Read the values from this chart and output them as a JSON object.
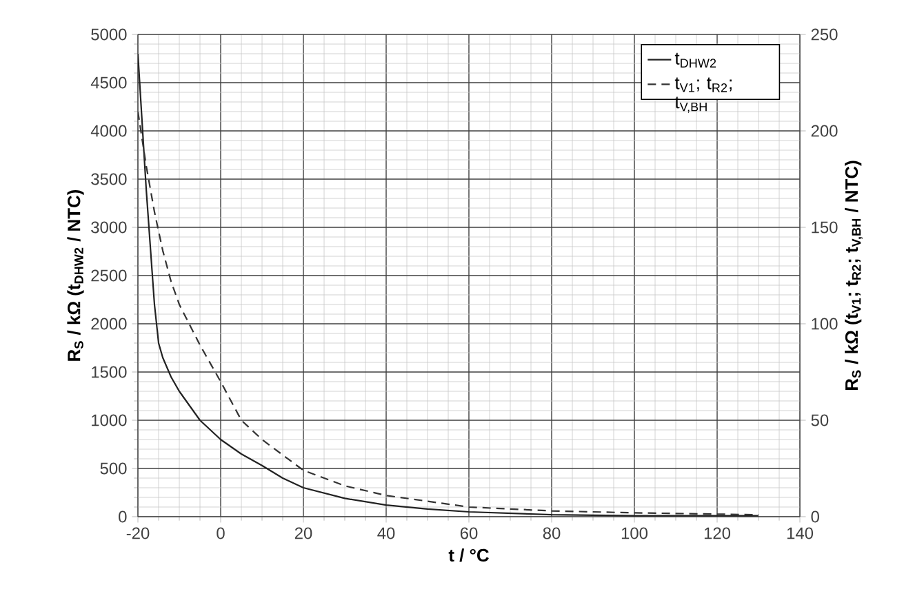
{
  "chart_data": {
    "type": "line",
    "xlabel": "t / °C",
    "ylabel": "R$_{S}$ / kΩ (t$_{DHW2}$ / NTC)",
    "y2label": "R$_{S}$ / kΩ (t$_{V1}$; t$_{R2}$; t$_{V,BH}$ / NTC)",
    "series": [
      {
        "name": "t$_{DHW2}$",
        "color": "#222222",
        "line_style": "solid",
        "x": [
          -20,
          -19,
          -18,
          -17,
          -16,
          -15,
          -14,
          -12,
          -10,
          -5,
          0,
          5,
          10,
          15,
          20,
          30,
          40,
          50,
          60,
          80,
          100,
          120,
          130
        ],
        "values": [
          4800,
          4100,
          3400,
          2800,
          2200,
          1800,
          1650,
          1450,
          1300,
          1000,
          800,
          650,
          530,
          400,
          300,
          190,
          120,
          80,
          50,
          20,
          10,
          10,
          10
        ]
      },
      {
        "name": "t$_{V1}$; t$_{R2}$; t$_{V,BH}$",
        "color": "#333333",
        "line_style": "dashed",
        "axis": "y2",
        "x": [
          -20,
          -19,
          -18,
          -16,
          -14,
          -12,
          -10,
          -5,
          0,
          5,
          10,
          20,
          30,
          40,
          60,
          80,
          100,
          130
        ],
        "values": [
          210,
          196,
          182,
          158,
          138,
          122,
          110,
          89,
          70,
          50,
          40,
          24,
          16,
          11,
          5,
          3,
          2,
          1
        ]
      }
    ],
    "xlim": [
      -20,
      140
    ],
    "xticks": [
      -20,
      0,
      20,
      40,
      60,
      80,
      100,
      120,
      140
    ],
    "ylim": [
      0,
      5000
    ],
    "yticks": [
      0,
      500,
      1000,
      1500,
      2000,
      2500,
      3000,
      3500,
      4000,
      4500,
      5000
    ],
    "y2lim": [
      0,
      250
    ],
    "y2ticks": [
      0,
      50,
      100,
      150,
      200,
      250
    ],
    "grid": true,
    "legend": "top right",
    "marker": "none"
  }
}
